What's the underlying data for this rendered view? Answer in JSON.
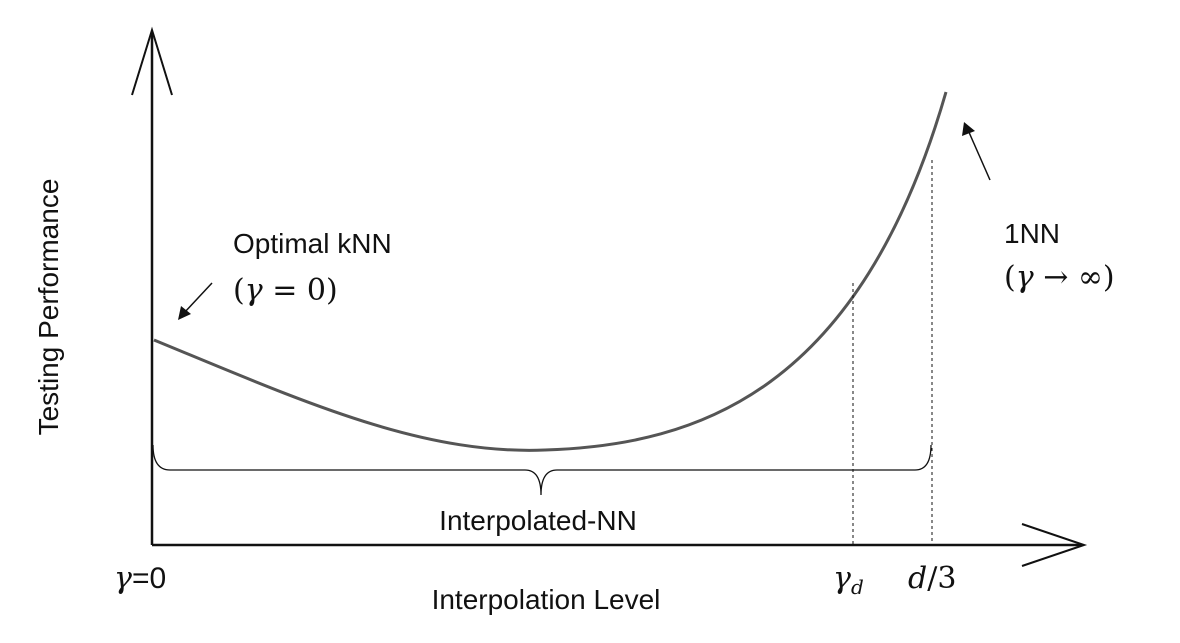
{
  "figure": {
    "y_axis_label": "Testing Performance",
    "x_axis_label": "Interpolation Level",
    "origin_tick": {
      "symbol": "γ",
      "suffix": "=0"
    },
    "tick_gamma_d": {
      "symbol": "γ",
      "subscript": "d"
    },
    "tick_d3": {
      "var": "d",
      "rest": "/3"
    },
    "annotation_left": {
      "title": "Optimal kNN",
      "open": "(",
      "symbol": "γ",
      "relation": " = 0",
      "close": ")"
    },
    "annotation_right": {
      "title": "1NN",
      "open": "(",
      "symbol": "γ",
      "relation": " → ∞",
      "close": ")"
    },
    "brace_label": "Interpolated-NN"
  },
  "colors": {
    "curve": "#555555",
    "axis": "#111111",
    "text": "#111111"
  }
}
